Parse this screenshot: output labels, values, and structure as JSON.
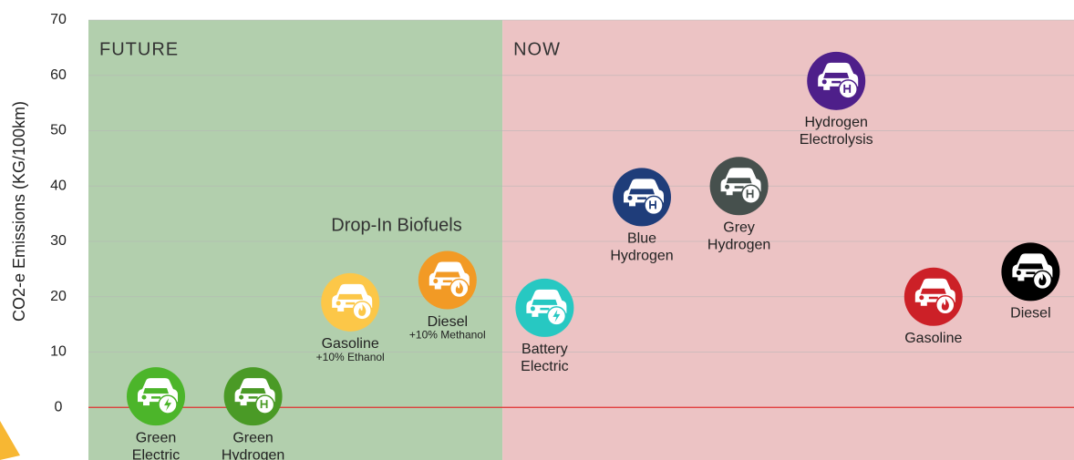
{
  "chart_data": {
    "type": "icon-scatter",
    "y_label": "CO2-e Emissions (KG/100km)",
    "annotation": "Drop-In Biofuels",
    "ylim": [
      -9.5,
      70
    ],
    "yticks": [
      0,
      10,
      20,
      30,
      40,
      50,
      60,
      70
    ],
    "grid": true,
    "grid_color": "#b5b5b5",
    "zero_line_color": "#e03030",
    "regions": [
      {
        "label": "FUTURE",
        "color": "#b2cfad",
        "count": 4
      },
      {
        "label": "NOW",
        "color": "#ecc3c4",
        "count": 6
      }
    ],
    "points": [
      {
        "label": [
          "Green",
          "Electric"
        ],
        "color": "#4cb52a",
        "icon": "electric"
      },
      {
        "label": [
          "Green",
          "Hydrogen"
        ],
        "color": "#4a9a26",
        "icon": "hydrogen"
      },
      {
        "label": [
          "Gasoline"
        ],
        "note": "+10% Ethanol",
        "color": "#fcc748",
        "icon": "fuel"
      },
      {
        "label": [
          "Diesel"
        ],
        "note": "+10% Methanol",
        "color": "#f29a25",
        "icon": "fuel"
      },
      {
        "label": [
          "Battery",
          "Electric"
        ],
        "color": "#27c8c2",
        "icon": "electric"
      },
      {
        "label": [
          "Blue",
          "Hydrogen"
        ],
        "color": "#1f3d7a",
        "icon": "hydrogen"
      },
      {
        "label": [
          "Grey",
          "Hydrogen"
        ],
        "color": "#46504d",
        "icon": "hydrogen"
      },
      {
        "label": [
          "Hydrogen",
          "Electrolysis"
        ],
        "color": "#4e1f8a",
        "icon": "hydrogen"
      },
      {
        "label": [
          "Gasoline"
        ],
        "color": "#cc2027",
        "icon": "fuel"
      },
      {
        "label": [
          "Diesel"
        ],
        "color": "#000000",
        "icon": "fuel"
      }
    ],
    "values": [
      2,
      2,
      19,
      23,
      18,
      38,
      40,
      59,
      20,
      24.5
    ]
  }
}
